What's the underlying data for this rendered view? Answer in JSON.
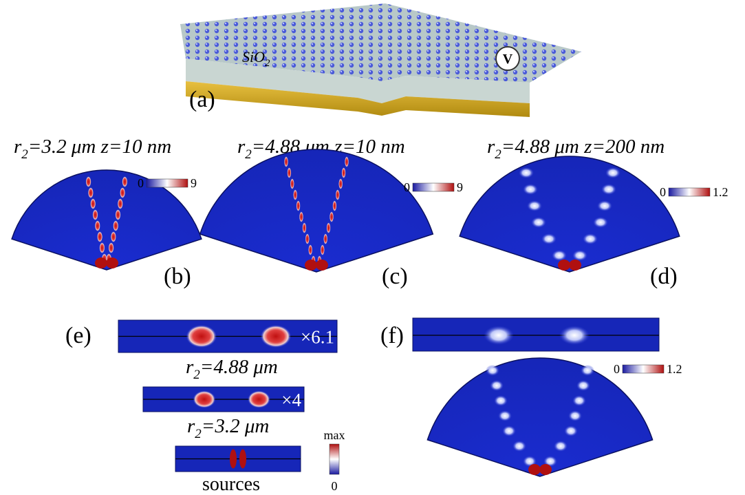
{
  "panel_a": {
    "label": "(a)",
    "material": {
      "base": "SiO",
      "sub": "2"
    },
    "voltmeter": "V"
  },
  "panels": [
    {
      "label": "(b)",
      "title": {
        "var": "r",
        "sub": "2",
        "rest": "=3.2 μm  z=10 nm"
      },
      "colorbar": {
        "min": "0",
        "max": "9"
      }
    },
    {
      "label": "(c)",
      "title": {
        "var": "r",
        "sub": "2",
        "rest": "=4.88 μm  z=10 nm"
      },
      "colorbar": {
        "min": "0",
        "max": "9"
      }
    },
    {
      "label": "(d)",
      "title": {
        "var": "r",
        "sub": "2",
        "rest": "=4.88 μm  z=200 nm"
      },
      "colorbar": {
        "min": "0",
        "max": "1.2"
      }
    }
  ],
  "panel_e": {
    "label": "(e)",
    "strips": [
      {
        "factor": "×6.1",
        "caption": {
          "var": "r",
          "sub": "2",
          "rest": "=4.88 μm"
        }
      },
      {
        "factor": "×4",
        "caption": {
          "var": "r",
          "sub": "2",
          "rest": "=3.2 μm"
        }
      },
      {
        "caption": "sources"
      }
    ],
    "colorbar": {
      "max": "max",
      "min": "0"
    }
  },
  "panel_f": {
    "label": "(f)",
    "colorbar": {
      "min": "0",
      "max": "1.2"
    }
  }
}
